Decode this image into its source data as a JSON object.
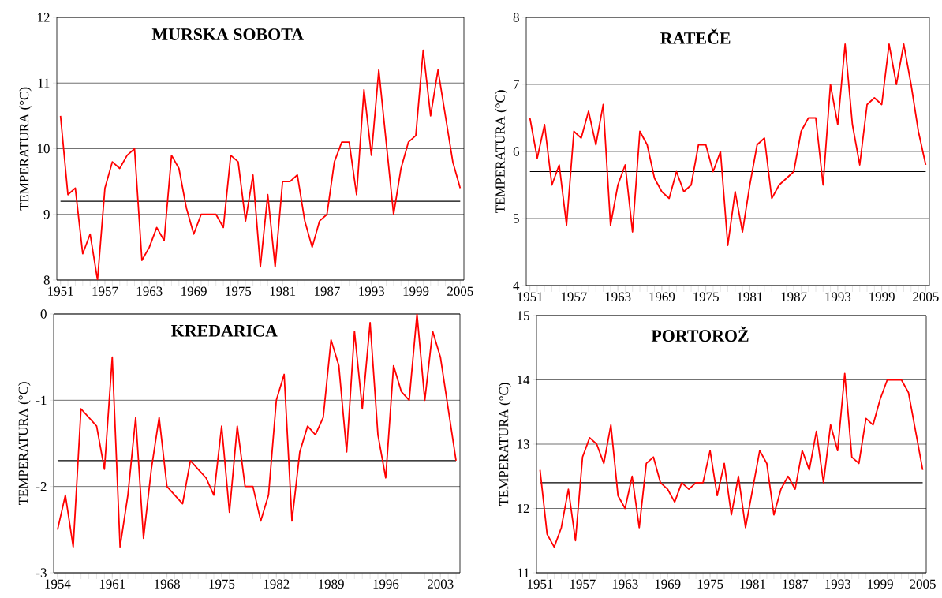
{
  "chart_data": [
    {
      "type": "line",
      "title": "MURSKA SOBOTA",
      "ylabel": "TEMPERATURA (°C)",
      "x": [
        1951,
        1952,
        1953,
        1954,
        1955,
        1956,
        1957,
        1958,
        1959,
        1960,
        1961,
        1962,
        1963,
        1964,
        1965,
        1966,
        1967,
        1968,
        1969,
        1970,
        1971,
        1972,
        1973,
        1974,
        1975,
        1976,
        1977,
        1978,
        1979,
        1980,
        1981,
        1982,
        1983,
        1984,
        1985,
        1986,
        1987,
        1988,
        1989,
        1990,
        1991,
        1992,
        1993,
        1994,
        1995,
        1996,
        1997,
        1998,
        1999,
        2000,
        2001,
        2002,
        2003,
        2004,
        2005
      ],
      "series": [
        {
          "color": "#ff0000",
          "values": [
            10.5,
            9.3,
            9.4,
            8.4,
            8.7,
            8.0,
            9.4,
            9.8,
            9.7,
            9.9,
            10.0,
            8.3,
            8.5,
            8.8,
            8.6,
            9.9,
            9.7,
            9.1,
            8.7,
            9.0,
            9.0,
            9.0,
            8.8,
            9.9,
            9.8,
            8.9,
            9.6,
            8.2,
            9.3,
            8.2,
            9.5,
            9.5,
            9.6,
            8.9,
            8.5,
            8.9,
            9.0,
            9.8,
            10.1,
            10.1,
            9.3,
            10.9,
            9.9,
            11.2,
            10.1,
            9.0,
            9.7,
            10.1,
            10.2,
            11.5,
            10.5,
            11.2,
            10.5,
            9.8,
            9.4
          ]
        }
      ],
      "xlim": [
        1950.5,
        2005.5
      ],
      "ylim": [
        8,
        12
      ],
      "xticks": [
        1951,
        1957,
        1963,
        1969,
        1975,
        1981,
        1987,
        1993,
        1999,
        2005
      ],
      "yticks": [
        8,
        9,
        10,
        11,
        12
      ],
      "grid": "y",
      "ref_lines": [
        {
          "axis": "y",
          "value": 9.2,
          "color": "#000000"
        }
      ]
    },
    {
      "type": "line",
      "title": "RATEČE",
      "ylabel": "TEMPERATURA (°C)",
      "x": [
        1951,
        1952,
        1953,
        1954,
        1955,
        1956,
        1957,
        1958,
        1959,
        1960,
        1961,
        1962,
        1963,
        1964,
        1965,
        1966,
        1967,
        1968,
        1969,
        1970,
        1971,
        1972,
        1973,
        1974,
        1975,
        1976,
        1977,
        1978,
        1979,
        1980,
        1981,
        1982,
        1983,
        1984,
        1985,
        1986,
        1987,
        1988,
        1989,
        1990,
        1991,
        1992,
        1993,
        1994,
        1995,
        1996,
        1997,
        1998,
        1999,
        2000,
        2001,
        2002,
        2003,
        2004,
        2005
      ],
      "series": [
        {
          "color": "#ff0000",
          "values": [
            6.5,
            5.9,
            6.4,
            5.5,
            5.8,
            4.9,
            6.3,
            6.2,
            6.6,
            6.1,
            6.7,
            4.9,
            5.5,
            5.8,
            4.8,
            6.3,
            6.1,
            5.6,
            5.4,
            5.3,
            5.7,
            5.4,
            5.5,
            6.1,
            6.1,
            5.7,
            6.0,
            4.6,
            5.4,
            4.8,
            5.5,
            6.1,
            6.2,
            5.3,
            5.5,
            5.6,
            5.7,
            6.3,
            6.5,
            6.5,
            5.5,
            7.0,
            6.4,
            7.6,
            6.4,
            5.8,
            6.7,
            6.8,
            6.7,
            7.6,
            7.0,
            7.6,
            7.0,
            6.3,
            5.8
          ]
        }
      ],
      "xlim": [
        1950.5,
        2005.5
      ],
      "ylim": [
        4,
        8
      ],
      "xticks": [
        1951,
        1957,
        1963,
        1969,
        1975,
        1981,
        1987,
        1993,
        1999,
        2005
      ],
      "yticks": [
        4,
        5,
        6,
        7,
        8
      ],
      "grid": "y",
      "ref_lines": [
        {
          "axis": "y",
          "value": 5.7,
          "color": "#000000"
        }
      ]
    },
    {
      "type": "line",
      "title": "KREDARICA",
      "ylabel": "TEMPERATURA (°C)",
      "x": [
        1954,
        1955,
        1956,
        1957,
        1958,
        1959,
        1960,
        1961,
        1962,
        1963,
        1964,
        1965,
        1966,
        1967,
        1968,
        1969,
        1970,
        1971,
        1972,
        1973,
        1974,
        1975,
        1976,
        1977,
        1978,
        1979,
        1980,
        1981,
        1982,
        1983,
        1984,
        1985,
        1986,
        1987,
        1988,
        1989,
        1990,
        1991,
        1992,
        1993,
        1994,
        1995,
        1996,
        1997,
        1998,
        1999,
        2000,
        2001,
        2002,
        2003,
        2004,
        2005
      ],
      "series": [
        {
          "color": "#ff0000",
          "values": [
            -2.5,
            -2.1,
            -2.7,
            -1.1,
            -1.2,
            -1.3,
            -1.8,
            -0.5,
            -2.7,
            -2.1,
            -1.2,
            -2.6,
            -1.8,
            -1.2,
            -2.0,
            -2.1,
            -2.2,
            -1.7,
            -1.8,
            -1.9,
            -2.1,
            -1.3,
            -2.3,
            -1.3,
            -2.0,
            -2.0,
            -2.4,
            -2.1,
            -1.0,
            -0.7,
            -2.4,
            -1.6,
            -1.3,
            -1.4,
            -1.2,
            -0.3,
            -0.6,
            -1.6,
            -0.2,
            -1.1,
            -0.1,
            -1.4,
            -1.9,
            -0.6,
            -0.9,
            -1.0,
            0.0,
            -1.0,
            -0.2,
            -0.5,
            -1.1,
            -1.7
          ]
        }
      ],
      "xlim": [
        1953.5,
        2005.5
      ],
      "ylim": [
        -3,
        0
      ],
      "xticks": [
        1954,
        1961,
        1968,
        1975,
        1982,
        1989,
        1996,
        2003
      ],
      "yticks": [
        -3,
        -2,
        -1,
        0
      ],
      "grid": "y",
      "ref_lines": [
        {
          "axis": "y",
          "value": -1.7,
          "color": "#000000"
        }
      ]
    },
    {
      "type": "line",
      "title": "PORTOROŽ",
      "ylabel": "TEMPERATURA (°C)",
      "x": [
        1951,
        1952,
        1953,
        1954,
        1955,
        1956,
        1957,
        1958,
        1959,
        1960,
        1961,
        1962,
        1963,
        1964,
        1965,
        1966,
        1967,
        1968,
        1969,
        1970,
        1971,
        1972,
        1973,
        1974,
        1975,
        1976,
        1977,
        1978,
        1979,
        1980,
        1981,
        1982,
        1983,
        1984,
        1985,
        1986,
        1987,
        1988,
        1989,
        1990,
        1991,
        1992,
        1993,
        1994,
        1995,
        1996,
        1997,
        1998,
        1999,
        2000,
        2001,
        2002,
        2003,
        2004,
        2005
      ],
      "series": [
        {
          "color": "#ff0000",
          "values": [
            12.6,
            11.6,
            11.4,
            11.7,
            12.3,
            11.5,
            12.8,
            13.1,
            13.0,
            12.7,
            13.3,
            12.2,
            12.0,
            12.5,
            11.7,
            12.7,
            12.8,
            12.4,
            12.3,
            12.1,
            12.4,
            12.3,
            12.4,
            12.4,
            12.9,
            12.2,
            12.7,
            11.9,
            12.5,
            11.7,
            12.3,
            12.9,
            12.7,
            11.9,
            12.3,
            12.5,
            12.3,
            12.9,
            12.6,
            13.2,
            12.4,
            13.3,
            12.9,
            14.1,
            12.8,
            12.7,
            13.4,
            13.3,
            13.7,
            14.0,
            14.0,
            14.0,
            13.8,
            13.2,
            12.6
          ]
        }
      ],
      "xlim": [
        1950.5,
        2005.5
      ],
      "ylim": [
        11,
        15
      ],
      "xticks": [
        1951,
        1957,
        1963,
        1969,
        1975,
        1981,
        1987,
        1993,
        1999,
        2005
      ],
      "yticks": [
        11,
        12,
        13,
        14,
        15
      ],
      "grid": "y",
      "ref_lines": [
        {
          "axis": "y",
          "value": 12.4,
          "color": "#000000"
        }
      ]
    }
  ]
}
